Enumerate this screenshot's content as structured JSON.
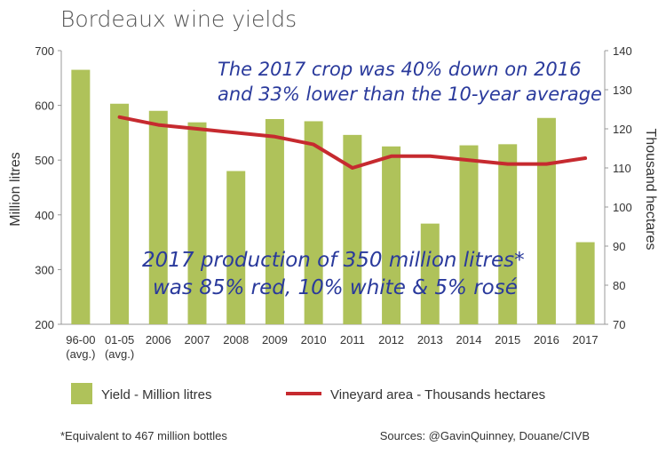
{
  "chart_data": {
    "type": "bar",
    "title": "Bordeaux wine yields",
    "ylabel": "Million litres",
    "y2label": "Thousand hectares",
    "ylim": [
      200,
      700
    ],
    "y2lim": [
      70,
      140
    ],
    "yticks": [
      "200",
      "300",
      "400",
      "500",
      "600",
      "700"
    ],
    "y2ticks": [
      "70",
      "80",
      "90",
      "100",
      "110",
      "120",
      "130",
      "140"
    ],
    "categories": [
      "96-00",
      "01-05",
      "2006",
      "2007",
      "2008",
      "2009",
      "2010",
      "2011",
      "2012",
      "2013",
      "2014",
      "2015",
      "2016",
      "2017"
    ],
    "category_sublabels": [
      "(avg.)",
      "(avg.)",
      "",
      "",
      "",
      "",
      "",
      "",
      "",
      "",
      "",
      "",
      "",
      ""
    ],
    "series": [
      {
        "name": "Yield - Million litres",
        "axis": "left",
        "type": "bar",
        "color": "#afc25a",
        "values": [
          665,
          603,
          590,
          569,
          480,
          575,
          571,
          546,
          525,
          384,
          527,
          529,
          577,
          350
        ]
      },
      {
        "name": "Vineyard area - Thousands hectares",
        "axis": "right",
        "type": "line",
        "color": "#c62a2f",
        "values": [
          null,
          123,
          121,
          120,
          119,
          118,
          116,
          110,
          113,
          113,
          112,
          111,
          111,
          112.5
        ]
      }
    ],
    "annotations": [
      "The 2017 crop was 40% down on 2016",
      "and 33% lower than the 10-year average",
      "2017 production of 350 million litres*",
      "was 85% red, 10% white & 5% rosé"
    ],
    "legend_position": "bottom",
    "grid": false
  },
  "footnote": "*Equivalent to 467 million bottles",
  "sources": "Sources: @GavinQuinney, Douane/CIVB"
}
